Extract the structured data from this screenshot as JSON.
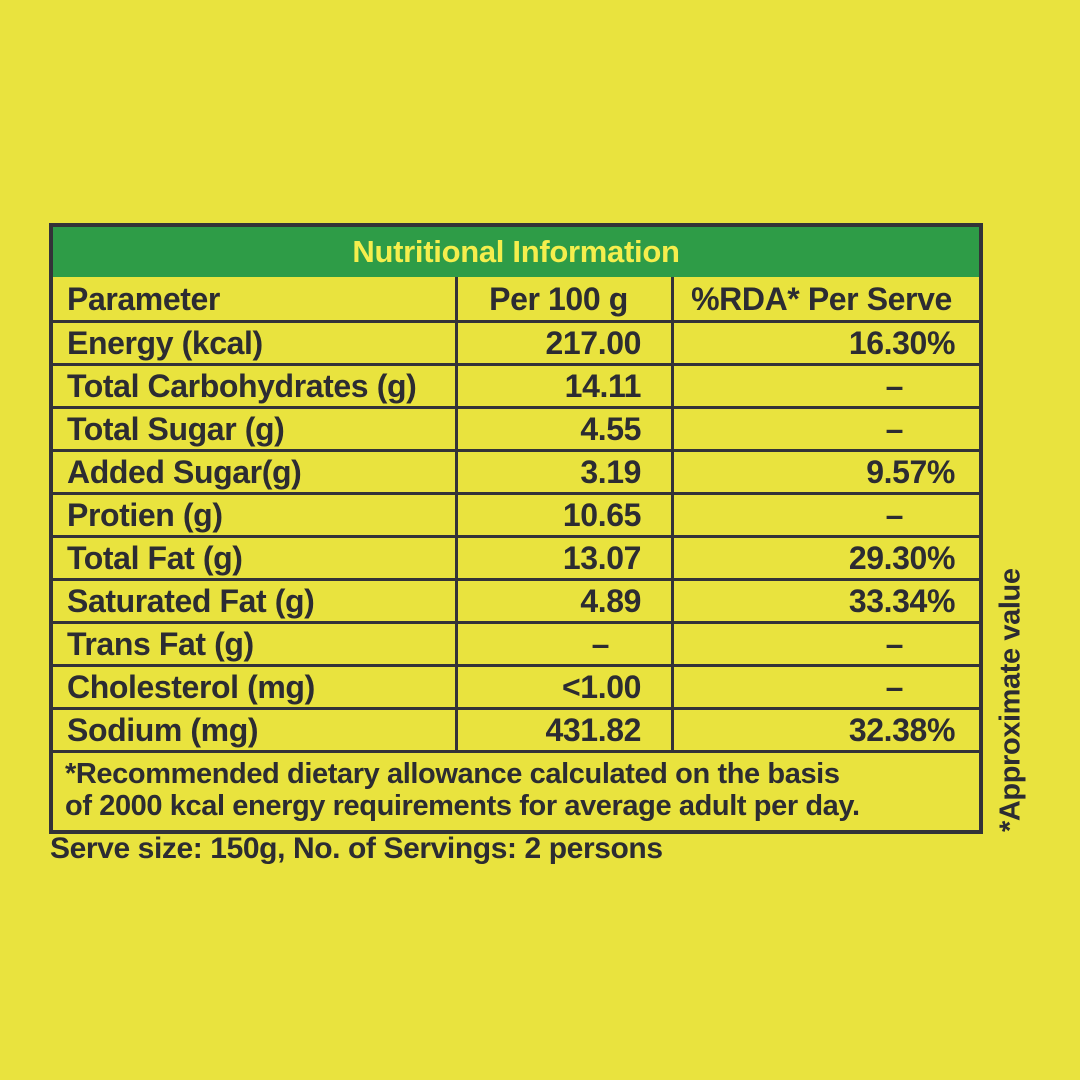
{
  "colors": {
    "background": "#e9e33e",
    "header_green": "#2e9c47",
    "title_text": "#f5ee4d",
    "ink": "#2c2c32",
    "border": "#333338"
  },
  "table": {
    "title": "Nutritional Information",
    "columns": {
      "parameter": "Parameter",
      "per_100g": "Per 100 g",
      "rda_per_serve": "%RDA* Per Serve"
    },
    "rows": [
      {
        "parameter": "Energy (kcal)",
        "per_100g": "217.00",
        "rda_per_serve": "16.30%"
      },
      {
        "parameter": "Total Carbohydrates (g)",
        "per_100g": "14.11",
        "rda_per_serve": "–"
      },
      {
        "parameter": "Total Sugar (g)",
        "per_100g": "4.55",
        "rda_per_serve": "–"
      },
      {
        "parameter": "Added Sugar(g)",
        "per_100g": "3.19",
        "rda_per_serve": "9.57%"
      },
      {
        "parameter": "Protien (g)",
        "per_100g": "10.65",
        "rda_per_serve": "–"
      },
      {
        "parameter": "Total Fat (g)",
        "per_100g": "13.07",
        "rda_per_serve": "29.30%"
      },
      {
        "parameter": "Saturated Fat (g)",
        "per_100g": "4.89",
        "rda_per_serve": "33.34%"
      },
      {
        "parameter": "Trans Fat (g)",
        "per_100g": "–",
        "rda_per_serve": "–"
      },
      {
        "parameter": "Cholesterol (mg)",
        "per_100g": "<1.00",
        "rda_per_serve": "–"
      },
      {
        "parameter": "Sodium (mg)",
        "per_100g": "431.82",
        "rda_per_serve": "32.38%"
      }
    ],
    "footnote_line1": "*Recommended dietary allowance calculated on the basis",
    "footnote_line2": "of 2000 kcal energy requirements for average adult per day."
  },
  "serve_info": "Serve size: 150g, No. of Servings: 2 persons",
  "side_note": "*Approximate value"
}
